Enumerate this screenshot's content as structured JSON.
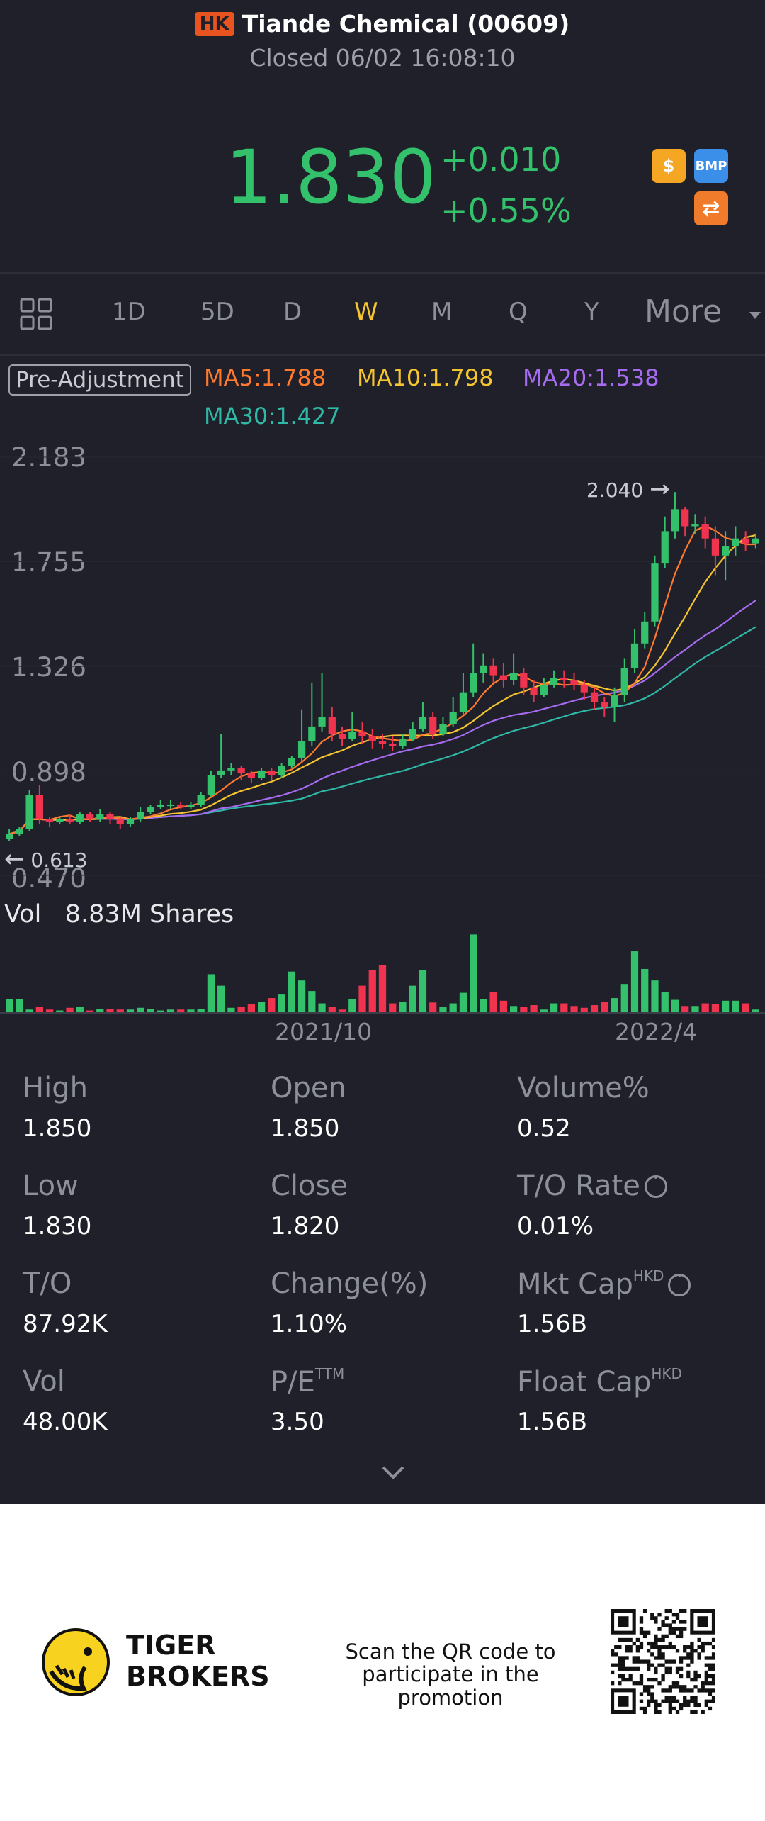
{
  "header": {
    "market": "HK",
    "title": "Tiande Chemical (00609)",
    "status": "Closed 06/02 16:08:10",
    "price": "1.830",
    "change": "+0.010",
    "change_pct": "+0.55%",
    "icons": [
      {
        "name": "dollar-icon",
        "glyph": "$",
        "color": "#f5a623"
      },
      {
        "name": "bmp-icon",
        "glyph": "BMP",
        "color": "#3b8fe8"
      },
      {
        "name": "exchange-icon",
        "glyph": "⇄",
        "color": "#f07b2b"
      }
    ]
  },
  "toolbar": {
    "items": [
      "1D",
      "5D",
      "D",
      "W",
      "M",
      "Q",
      "Y"
    ],
    "active": "W",
    "more": "More"
  },
  "chart": {
    "pre_adjustment": "Pre-Adjustment",
    "ma": {
      "ma5": "MA5:1.788",
      "ma10": "MA10:1.798",
      "ma20": "MA20:1.538",
      "ma30": "MA30:1.427"
    },
    "ma_colors": {
      "ma5": "#ff7a2f",
      "ma10": "#f5c431",
      "ma20": "#a66bf0",
      "ma30": "#2fb8a6"
    },
    "y_labels": [
      "2.183",
      "1.755",
      "1.326",
      "0.898",
      "0.470"
    ],
    "high_marker": "2.040",
    "low_marker": "0.613",
    "volume_label": "Vol",
    "volume_value": "8.83M Shares",
    "x_labels": [
      "2021/10",
      "2022/4"
    ]
  },
  "chart_data": {
    "type": "candlestick",
    "ylim": [
      0.47,
      2.183
    ],
    "up_color": "#33c16c",
    "down_color": "#f0344f",
    "candles": [
      [
        0.62,
        0.64,
        0.61,
        0.66
      ],
      [
        0.64,
        0.66,
        0.63,
        0.67
      ],
      [
        0.66,
        0.8,
        0.65,
        0.82
      ],
      [
        0.8,
        0.7,
        0.68,
        0.84
      ],
      [
        0.7,
        0.69,
        0.67,
        0.71
      ],
      [
        0.69,
        0.7,
        0.68,
        0.71
      ],
      [
        0.7,
        0.69,
        0.68,
        0.72
      ],
      [
        0.69,
        0.72,
        0.68,
        0.73
      ],
      [
        0.72,
        0.7,
        0.69,
        0.73
      ],
      [
        0.7,
        0.72,
        0.69,
        0.74
      ],
      [
        0.72,
        0.7,
        0.68,
        0.73
      ],
      [
        0.7,
        0.68,
        0.66,
        0.71
      ],
      [
        0.68,
        0.7,
        0.67,
        0.71
      ],
      [
        0.7,
        0.73,
        0.69,
        0.75
      ],
      [
        0.73,
        0.75,
        0.72,
        0.76
      ],
      [
        0.75,
        0.76,
        0.74,
        0.78
      ],
      [
        0.76,
        0.76,
        0.74,
        0.78
      ],
      [
        0.76,
        0.75,
        0.74,
        0.77
      ],
      [
        0.75,
        0.76,
        0.74,
        0.77
      ],
      [
        0.76,
        0.8,
        0.75,
        0.81
      ],
      [
        0.8,
        0.88,
        0.79,
        0.9
      ],
      [
        0.88,
        0.9,
        0.87,
        1.05
      ],
      [
        0.9,
        0.91,
        0.88,
        0.93
      ],
      [
        0.91,
        0.89,
        0.86,
        0.92
      ],
      [
        0.89,
        0.87,
        0.85,
        0.9
      ],
      [
        0.87,
        0.9,
        0.86,
        0.91
      ],
      [
        0.9,
        0.88,
        0.86,
        0.91
      ],
      [
        0.88,
        0.92,
        0.87,
        0.93
      ],
      [
        0.92,
        0.95,
        0.91,
        0.96
      ],
      [
        0.95,
        1.02,
        0.94,
        1.15
      ],
      [
        1.02,
        1.08,
        1.0,
        1.26
      ],
      [
        1.08,
        1.12,
        1.06,
        1.3
      ],
      [
        1.12,
        1.05,
        1.02,
        1.16
      ],
      [
        1.05,
        1.03,
        1.0,
        1.08
      ],
      [
        1.03,
        1.06,
        1.02,
        1.14
      ],
      [
        1.06,
        1.04,
        1.01,
        1.1
      ],
      [
        1.04,
        1.02,
        0.99,
        1.07
      ],
      [
        1.02,
        1.01,
        0.99,
        1.05
      ],
      [
        1.01,
        1.0,
        0.98,
        1.04
      ],
      [
        1.0,
        1.03,
        0.99,
        1.05
      ],
      [
        1.03,
        1.07,
        1.02,
        1.1
      ],
      [
        1.07,
        1.12,
        1.06,
        1.18
      ],
      [
        1.12,
        1.05,
        1.03,
        1.14
      ],
      [
        1.05,
        1.09,
        1.04,
        1.12
      ],
      [
        1.09,
        1.14,
        1.08,
        1.2
      ],
      [
        1.14,
        1.22,
        1.13,
        1.3
      ],
      [
        1.22,
        1.3,
        1.2,
        1.42
      ],
      [
        1.3,
        1.33,
        1.26,
        1.38
      ],
      [
        1.33,
        1.29,
        1.26,
        1.36
      ],
      [
        1.29,
        1.27,
        1.24,
        1.34
      ],
      [
        1.27,
        1.3,
        1.25,
        1.38
      ],
      [
        1.3,
        1.24,
        1.21,
        1.32
      ],
      [
        1.24,
        1.21,
        1.18,
        1.27
      ],
      [
        1.21,
        1.25,
        1.2,
        1.28
      ],
      [
        1.25,
        1.28,
        1.24,
        1.31
      ],
      [
        1.28,
        1.27,
        1.24,
        1.31
      ],
      [
        1.27,
        1.25,
        1.23,
        1.3
      ],
      [
        1.25,
        1.22,
        1.19,
        1.27
      ],
      [
        1.22,
        1.18,
        1.15,
        1.24
      ],
      [
        1.18,
        1.16,
        1.12,
        1.2
      ],
      [
        1.16,
        1.21,
        1.1,
        1.24
      ],
      [
        1.21,
        1.32,
        1.18,
        1.36
      ],
      [
        1.32,
        1.42,
        1.3,
        1.48
      ],
      [
        1.42,
        1.51,
        1.4,
        1.55
      ],
      [
        1.51,
        1.75,
        1.49,
        1.78
      ],
      [
        1.75,
        1.88,
        1.73,
        1.94
      ],
      [
        1.88,
        1.97,
        1.85,
        2.04
      ],
      [
        1.97,
        1.9,
        1.86,
        1.98
      ],
      [
        1.9,
        1.91,
        1.87,
        1.95
      ],
      [
        1.91,
        1.85,
        1.81,
        1.94
      ],
      [
        1.85,
        1.78,
        1.7,
        1.9
      ],
      [
        1.78,
        1.82,
        1.68,
        1.88
      ],
      [
        1.82,
        1.85,
        1.78,
        1.9
      ],
      [
        1.85,
        1.83,
        1.8,
        1.88
      ],
      [
        1.83,
        1.85,
        1.81,
        1.87
      ]
    ],
    "volume_ylim": [
      0,
      8.83
    ],
    "volumes": [
      1.5,
      1.5,
      0.3,
      0.6,
      0.3,
      0.2,
      0.5,
      0.6,
      0.2,
      0.4,
      0.4,
      0.3,
      0.3,
      0.5,
      0.4,
      0.2,
      0.3,
      0.3,
      0.3,
      0.4,
      4.3,
      3.0,
      0.5,
      0.6,
      0.9,
      1.2,
      1.6,
      2.0,
      4.6,
      3.6,
      2.4,
      1.0,
      0.6,
      0.3,
      1.5,
      3.0,
      4.8,
      5.3,
      1.0,
      1.2,
      3.0,
      4.8,
      1.1,
      0.6,
      1.0,
      2.2,
      8.8,
      1.5,
      2.3,
      1.3,
      0.7,
      0.6,
      0.8,
      0.3,
      1.0,
      1.0,
      0.7,
      0.5,
      0.8,
      1.2,
      1.6,
      3.2,
      6.9,
      4.9,
      3.6,
      2.3,
      1.4,
      0.7,
      0.7,
      1.0,
      0.9,
      1.3,
      1.3,
      1.0,
      0.3
    ]
  },
  "stats": [
    [
      {
        "label": "High",
        "value": "1.850"
      },
      {
        "label": "Open",
        "value": "1.850"
      },
      {
        "label": "Volume%",
        "value": "0.52"
      }
    ],
    [
      {
        "label": "Low",
        "value": "1.830"
      },
      {
        "label": "Close",
        "value": "1.820"
      },
      {
        "label": "T/O Rate",
        "value": "0.01%"
      }
    ],
    [
      {
        "label": "T/O",
        "value": "87.92K"
      },
      {
        "label": "Change(%)",
        "value": "1.10%"
      },
      {
        "label": "Mkt Cap",
        "sup": "HKD",
        "value": "1.56B"
      }
    ],
    [
      {
        "label": "Vol",
        "value": "48.00K"
      },
      {
        "label": "P/E",
        "sup": "TTM",
        "value": "3.50"
      },
      {
        "label": "Float Cap",
        "sup": "HKD",
        "value": "1.56B"
      }
    ]
  ],
  "footer": {
    "brand_line1": "TIGER",
    "brand_line2": "BROKERS",
    "scan_line1": "Scan the QR code to",
    "scan_line2": "participate in the promotion"
  }
}
